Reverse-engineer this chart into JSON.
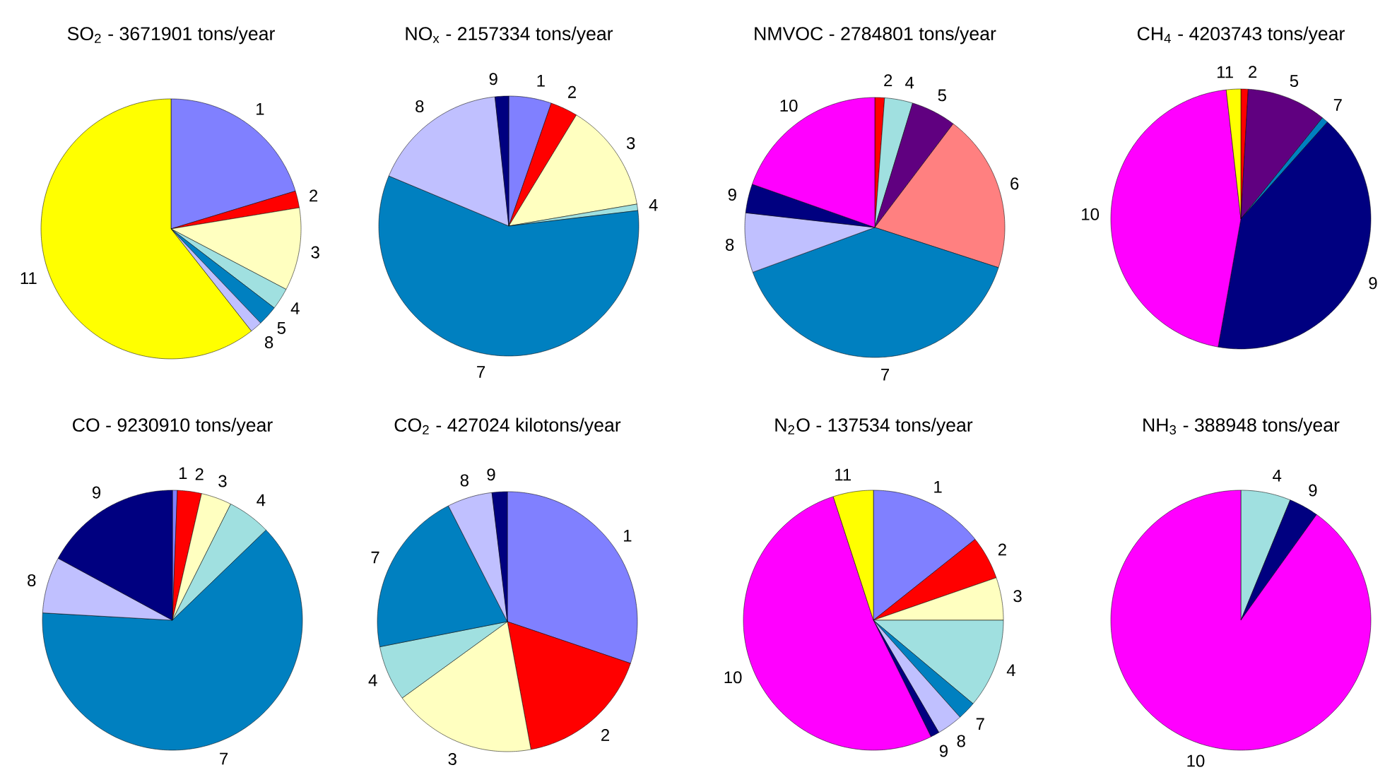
{
  "chart_data": [
    {
      "type": "pie",
      "title": "SO$_{2}$ - 3671901 tons/year",
      "categories": [
        "1",
        "2",
        "3",
        "4",
        "5",
        "8",
        "11"
      ],
      "values": [
        20.3,
        2.1,
        10.3,
        2.7,
        2.5,
        1.5,
        60.6
      ],
      "colors": [
        "#8080ff",
        "#ff0000",
        "#ffffc0",
        "#a0e0e0",
        "#0080c0",
        "#c0c0ff",
        "#ffff00"
      ]
    },
    {
      "type": "pie",
      "title": "NO$_{x}$ - 2157334 tons/year",
      "categories": [
        "1",
        "2",
        "3",
        "4",
        "7",
        "8",
        "9"
      ],
      "values": [
        5.3,
        3.4,
        13.6,
        0.8,
        58.2,
        17.0,
        1.7
      ],
      "colors": [
        "#8080ff",
        "#ff0000",
        "#ffffc0",
        "#a0e0e0",
        "#0080c0",
        "#c0c0ff",
        "#000080"
      ]
    },
    {
      "type": "pie",
      "title": "NMVOC - 2784801 tons/year",
      "categories": [
        "2",
        "4",
        "5",
        "6",
        "7",
        "8",
        "9",
        "10"
      ],
      "values": [
        1.2,
        3.5,
        5.6,
        19.7,
        39.4,
        7.4,
        3.6,
        19.6
      ],
      "colors": [
        "#ff0000",
        "#a0e0e0",
        "#600080",
        "#ff8080",
        "#0080c0",
        "#c0c0ff",
        "#000080",
        "#ff00ff"
      ]
    },
    {
      "type": "pie",
      "title": "CH$_{4}$ - 4203743 tons/year",
      "categories": [
        "2",
        "5",
        "7",
        "9",
        "10",
        "11"
      ],
      "values": [
        0.9,
        9.9,
        0.8,
        41.2,
        45.4,
        1.8
      ],
      "colors": [
        "#ff0000",
        "#600080",
        "#0080c0",
        "#000080",
        "#ff00ff",
        "#ffff00"
      ]
    },
    {
      "type": "pie",
      "title": "CO - 9230910 tons/year",
      "categories": [
        "1",
        "2",
        "3",
        "4",
        "7",
        "8",
        "9"
      ],
      "values": [
        0.6,
        3.0,
        3.8,
        5.4,
        63.1,
        7.0,
        17.1
      ],
      "colors": [
        "#8080ff",
        "#ff0000",
        "#ffffc0",
        "#a0e0e0",
        "#0080c0",
        "#c0c0ff",
        "#000080"
      ]
    },
    {
      "type": "pie",
      "title": "CO$_{2}$ - 427024 kilotons/year",
      "categories": [
        "1",
        "2",
        "3",
        "4",
        "7",
        "8",
        "9"
      ],
      "values": [
        30.2,
        16.9,
        17.9,
        6.9,
        20.6,
        5.6,
        1.9
      ],
      "colors": [
        "#8080ff",
        "#ff0000",
        "#ffffc0",
        "#a0e0e0",
        "#0080c0",
        "#c0c0ff",
        "#000080"
      ]
    },
    {
      "type": "pie",
      "title": "N$_{2}$O - 137534 tons/year",
      "categories": [
        "1",
        "2",
        "3",
        "4",
        "7",
        "8",
        "9",
        "10",
        "11"
      ],
      "values": [
        14.3,
        5.4,
        5.3,
        11.1,
        2.3,
        3.2,
        1.1,
        52.3,
        5.0
      ],
      "colors": [
        "#8080ff",
        "#ff0000",
        "#ffffc0",
        "#a0e0e0",
        "#0080c0",
        "#c0c0ff",
        "#000080",
        "#ff00ff",
        "#ffff00"
      ]
    },
    {
      "type": "pie",
      "title": "NH$_{3}$ - 388948 tons/year",
      "categories": [
        "4",
        "9",
        "10"
      ],
      "values": [
        6.2,
        3.7,
        90.1
      ],
      "colors": [
        "#a0e0e0",
        "#000080",
        "#ff00ff"
      ]
    }
  ]
}
